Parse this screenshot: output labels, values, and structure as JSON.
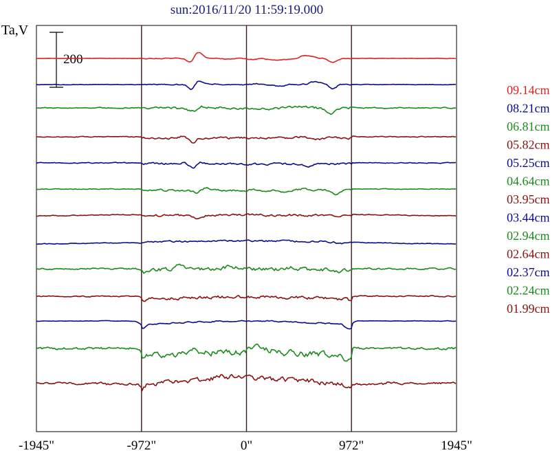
{
  "chart_data": {
    "type": "line",
    "title": "sun:2016/11/20 11:59:19.000",
    "ylabel": "Ta,V",
    "scale_bar_label": "200",
    "scale_bar_value": 200,
    "x_ticks": [
      {
        "value": -1945,
        "label": "-1945\""
      },
      {
        "value": -972,
        "label": "-972\""
      },
      {
        "value": 0,
        "label": "0\""
      },
      {
        "value": 972,
        "label": "972\""
      },
      {
        "value": 1945,
        "label": "1945\""
      }
    ],
    "xlim": [
      -1945,
      1945
    ],
    "vertical_lines": [
      -972,
      0,
      972
    ],
    "grid": false,
    "legend_position": "right",
    "series": [
      {
        "name": "09.14cm",
        "color": "#e02020",
        "baseline": 0,
        "shape": "f1"
      },
      {
        "name": "08.21cm",
        "color": "#0a0a8a",
        "baseline": 38,
        "shape": "f2"
      },
      {
        "name": "06.81cm",
        "color": "#1a8a1a",
        "baseline": 72,
        "shape": "f3"
      },
      {
        "name": "05.82cm",
        "color": "#8a1010",
        "baseline": 114,
        "shape": "f4"
      },
      {
        "name": "05.25cm",
        "color": "#0a0a8a",
        "baseline": 152,
        "shape": "f5"
      },
      {
        "name": "04.64cm",
        "color": "#1a8a1a",
        "baseline": 190,
        "shape": "f6"
      },
      {
        "name": "03.95cm",
        "color": "#8a1010",
        "baseline": 228,
        "shape": "f7"
      },
      {
        "name": "03.44cm",
        "color": "#0a0a8a",
        "baseline": 268,
        "shape": "f8"
      },
      {
        "name": "02.94cm",
        "color": "#1a8a1a",
        "baseline": 306,
        "shape": "f9"
      },
      {
        "name": "02.64cm",
        "color": "#8a1010",
        "baseline": 346,
        "shape": "f10"
      },
      {
        "name": "02.37cm",
        "color": "#0a0a8a",
        "baseline": 382,
        "shape": "f11"
      },
      {
        "name": "02.24cm",
        "color": "#1a8a1a",
        "baseline": 422,
        "shape": "f12"
      },
      {
        "name": "01.99cm",
        "color": "#8a1010",
        "baseline": 472,
        "shape": "f13"
      }
    ]
  }
}
